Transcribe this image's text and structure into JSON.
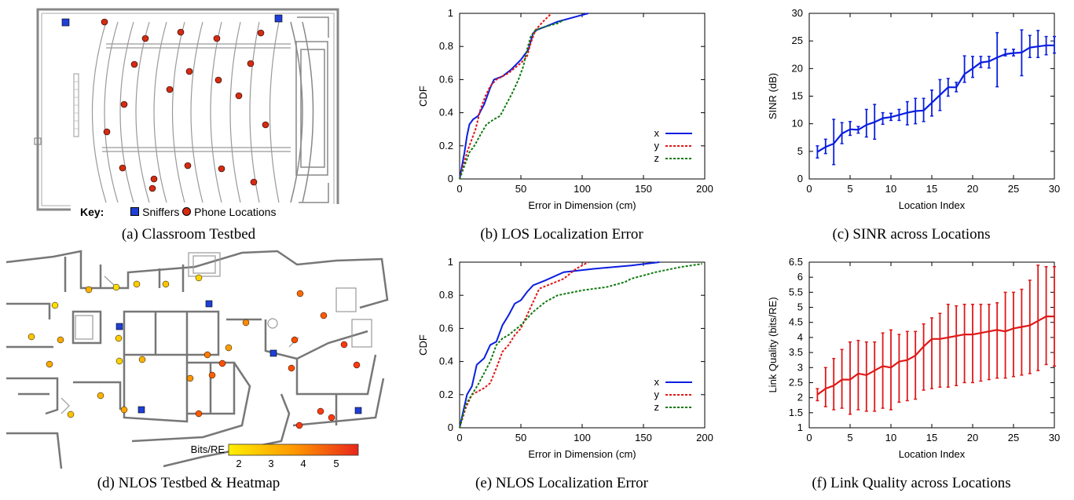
{
  "captions": {
    "a": "(a) Classroom Testbed",
    "b": "(b) LOS Localization Error",
    "c": "(c) SINR across Locations",
    "d": "(d) NLOS Testbed & Heatmap",
    "e": "(e) NLOS Localization Error",
    "f": "(f) Link Quality across Locations"
  },
  "classroom": {
    "key_label": "Key:",
    "sniffers_label": "Sniffers",
    "phones_label": "Phone Locations",
    "sniffer_color": "#1f3fd6",
    "phone_color": "#d62b12"
  },
  "heatmap": {
    "legend_title": "Bits/RE",
    "legend_ticks": [
      "2",
      "3",
      "4",
      "5"
    ],
    "gradient": [
      "#ffee00",
      "#ff9900",
      "#e8261a"
    ],
    "sniffer_color": "#1f3fd6"
  },
  "chart_data": [
    {
      "id": "b",
      "type": "line",
      "xlabel": "Error in Dimension (cm)",
      "ylabel": "CDF",
      "xlim": [
        0,
        200
      ],
      "ylim": [
        0,
        1
      ],
      "xticks": [
        "0",
        "50",
        "100",
        "150",
        "200"
      ],
      "yticks": [
        "0",
        "0.2",
        "0.4",
        "0.6",
        "0.8",
        "1"
      ],
      "legend_position": "bottom-right",
      "series": [
        {
          "name": "x",
          "color": "#0a1ee0",
          "dash": "",
          "points": [
            [
              0,
              0
            ],
            [
              2,
              0.08
            ],
            [
              4,
              0.16
            ],
            [
              6,
              0.26
            ],
            [
              8,
              0.33
            ],
            [
              11,
              0.36
            ],
            [
              15,
              0.38
            ],
            [
              20,
              0.45
            ],
            [
              25,
              0.55
            ],
            [
              28,
              0.6
            ],
            [
              35,
              0.62
            ],
            [
              42,
              0.66
            ],
            [
              50,
              0.72
            ],
            [
              56,
              0.78
            ],
            [
              60,
              0.88
            ],
            [
              63,
              0.9
            ],
            [
              70,
              0.92
            ],
            [
              80,
              0.95
            ],
            [
              95,
              0.98
            ],
            [
              105,
              1.0
            ]
          ]
        },
        {
          "name": "y",
          "color": "#e01818",
          "dash": "3,2",
          "points": [
            [
              0,
              0
            ],
            [
              3,
              0.08
            ],
            [
              6,
              0.16
            ],
            [
              9,
              0.22
            ],
            [
              13,
              0.3
            ],
            [
              17,
              0.42
            ],
            [
              21,
              0.5
            ],
            [
              25,
              0.56
            ],
            [
              30,
              0.6
            ],
            [
              40,
              0.64
            ],
            [
              50,
              0.7
            ],
            [
              55,
              0.74
            ],
            [
              58,
              0.82
            ],
            [
              62,
              0.9
            ],
            [
              68,
              0.95
            ],
            [
              75,
              1.0
            ]
          ]
        },
        {
          "name": "z",
          "color": "#0f7a0f",
          "dash": "3,2",
          "points": [
            [
              0,
              0
            ],
            [
              4,
              0.08
            ],
            [
              8,
              0.16
            ],
            [
              12,
              0.2
            ],
            [
              18,
              0.28
            ],
            [
              22,
              0.33
            ],
            [
              28,
              0.36
            ],
            [
              33,
              0.38
            ],
            [
              38,
              0.45
            ],
            [
              43,
              0.52
            ],
            [
              48,
              0.6
            ],
            [
              52,
              0.68
            ],
            [
              55,
              0.78
            ],
            [
              58,
              0.86
            ],
            [
              62,
              0.9
            ],
            [
              70,
              0.92
            ],
            [
              80,
              0.94
            ],
            [
              85,
              0.96
            ]
          ]
        }
      ]
    },
    {
      "id": "c",
      "type": "line",
      "xlabel": "Location Index",
      "ylabel": "SINR (dB)",
      "xlim": [
        0,
        30
      ],
      "ylim": [
        0,
        30
      ],
      "xticks": [
        "0",
        "5",
        "10",
        "15",
        "20",
        "25",
        "30"
      ],
      "yticks": [
        "0",
        "5",
        "10",
        "15",
        "20",
        "25",
        "30"
      ],
      "series": [
        {
          "name": "",
          "color": "#0a1ee0",
          "values": [
            4.9,
            5.8,
            6.4,
            8.2,
            9.0,
            8.9,
            9.8,
            10.3,
            11.0,
            11.2,
            11.6,
            12.0,
            12.3,
            12.4,
            13.8,
            15.2,
            16.6,
            16.6,
            19.0,
            20.0,
            21.1,
            21.3,
            22.0,
            22.6,
            22.8,
            22.9,
            23.8,
            24.0,
            24.2,
            24.2
          ],
          "err_low": [
            3.8,
            4.6,
            2.6,
            6.4,
            7.9,
            8.3,
            7.6,
            7.2,
            9.9,
            10.6,
            10.6,
            9.8,
            10.0,
            10.4,
            11.4,
            12.4,
            15.0,
            15.8,
            17.5,
            18.4,
            20.2,
            20.1,
            16.7,
            22.3,
            22.3,
            18.7,
            22.0,
            22.0,
            22.5,
            22.8
          ],
          "err_high": [
            6.0,
            7.2,
            10.8,
            10.2,
            10.4,
            9.5,
            12.6,
            13.5,
            12.0,
            11.9,
            12.6,
            14.0,
            14.6,
            14.6,
            16.1,
            18.0,
            18.2,
            17.5,
            22.3,
            22.2,
            22.2,
            22.2,
            26.5,
            23.5,
            23.5,
            27.0,
            26.0,
            26.9,
            25.8,
            25.8
          ]
        }
      ]
    },
    {
      "id": "e",
      "type": "line",
      "xlabel": "Error in Dimension (cm)",
      "ylabel": "CDF",
      "xlim": [
        0,
        200
      ],
      "ylim": [
        0,
        1
      ],
      "xticks": [
        "0",
        "50",
        "100",
        "150",
        "200"
      ],
      "yticks": [
        "0",
        "0.2",
        "0.4",
        "0.6",
        "0.8",
        "1"
      ],
      "legend_position": "bottom-right",
      "series": [
        {
          "name": "x",
          "color": "#0a1ee0",
          "dash": "",
          "points": [
            [
              0,
              0
            ],
            [
              3,
              0.1
            ],
            [
              6,
              0.2
            ],
            [
              10,
              0.25
            ],
            [
              14,
              0.38
            ],
            [
              20,
              0.42
            ],
            [
              25,
              0.5
            ],
            [
              30,
              0.52
            ],
            [
              35,
              0.62
            ],
            [
              40,
              0.68
            ],
            [
              45,
              0.75
            ],
            [
              50,
              0.77
            ],
            [
              55,
              0.82
            ],
            [
              60,
              0.86
            ],
            [
              70,
              0.89
            ],
            [
              85,
              0.94
            ],
            [
              110,
              0.96
            ],
            [
              140,
              0.98
            ],
            [
              163,
              1.0
            ]
          ]
        },
        {
          "name": "y",
          "color": "#e01818",
          "dash": "3,2",
          "points": [
            [
              0,
              0
            ],
            [
              5,
              0.12
            ],
            [
              10,
              0.2
            ],
            [
              15,
              0.22
            ],
            [
              20,
              0.24
            ],
            [
              25,
              0.27
            ],
            [
              30,
              0.36
            ],
            [
              35,
              0.46
            ],
            [
              40,
              0.5
            ],
            [
              45,
              0.56
            ],
            [
              50,
              0.6
            ],
            [
              55,
              0.68
            ],
            [
              60,
              0.76
            ],
            [
              65,
              0.84
            ],
            [
              75,
              0.87
            ],
            [
              85,
              0.9
            ],
            [
              95,
              0.96
            ],
            [
              105,
              1.0
            ]
          ]
        },
        {
          "name": "z",
          "color": "#0f7a0f",
          "dash": "3,2",
          "points": [
            [
              0,
              0
            ],
            [
              5,
              0.14
            ],
            [
              10,
              0.2
            ],
            [
              15,
              0.26
            ],
            [
              20,
              0.33
            ],
            [
              25,
              0.4
            ],
            [
              30,
              0.5
            ],
            [
              35,
              0.54
            ],
            [
              40,
              0.56
            ],
            [
              45,
              0.59
            ],
            [
              50,
              0.62
            ],
            [
              55,
              0.66
            ],
            [
              60,
              0.7
            ],
            [
              70,
              0.76
            ],
            [
              80,
              0.8
            ],
            [
              100,
              0.83
            ],
            [
              120,
              0.85
            ],
            [
              135,
              0.88
            ],
            [
              140,
              0.9
            ],
            [
              160,
              0.94
            ],
            [
              180,
              0.97
            ],
            [
              198,
              0.99
            ]
          ]
        }
      ]
    },
    {
      "id": "f",
      "type": "line",
      "xlabel": "Location Index",
      "ylabel": "Link Quality (bits/RE)",
      "xlim": [
        0,
        30
      ],
      "ylim": [
        1,
        6.5
      ],
      "xticks": [
        "0",
        "5",
        "10",
        "15",
        "20",
        "25",
        "30"
      ],
      "yticks": [
        "1",
        "1.5",
        "2",
        "2.5",
        "3",
        "3.5",
        "4",
        "4.5",
        "5",
        "5.5",
        "6",
        "6.5"
      ],
      "series": [
        {
          "name": "",
          "color": "#e01818",
          "values": [
            2.1,
            2.3,
            2.4,
            2.6,
            2.6,
            2.8,
            2.75,
            2.9,
            3.05,
            3.0,
            3.2,
            3.25,
            3.4,
            3.7,
            3.95,
            3.95,
            4.0,
            4.05,
            4.1,
            4.1,
            4.15,
            4.2,
            4.25,
            4.2,
            4.3,
            4.35,
            4.4,
            4.55,
            4.7,
            4.7
          ],
          "err_low": [
            1.9,
            1.7,
            1.6,
            1.65,
            1.45,
            1.6,
            1.55,
            1.55,
            1.65,
            1.6,
            1.85,
            1.9,
            1.95,
            2.25,
            2.3,
            2.35,
            2.35,
            2.4,
            2.5,
            2.5,
            2.55,
            2.6,
            2.65,
            2.65,
            2.7,
            2.75,
            2.8,
            2.9,
            3.1,
            3.05
          ],
          "err_high": [
            2.3,
            3.0,
            3.3,
            3.6,
            3.85,
            3.9,
            3.85,
            3.85,
            4.15,
            4.25,
            4.1,
            4.2,
            4.2,
            4.45,
            4.65,
            4.8,
            5.1,
            5.05,
            5.1,
            5.1,
            5.1,
            5.1,
            5.15,
            5.5,
            5.5,
            5.6,
            5.9,
            6.4,
            6.35,
            6.35
          ]
        }
      ]
    }
  ]
}
